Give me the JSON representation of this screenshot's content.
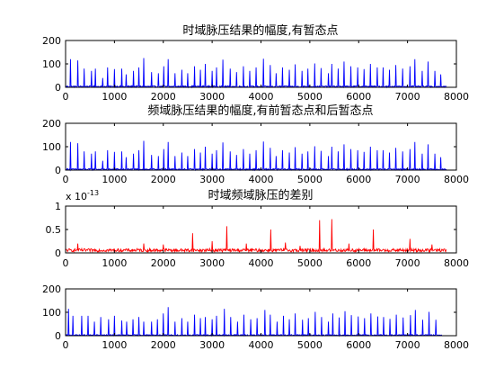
{
  "chart_data": [
    {
      "type": "line",
      "title": "时域脉压结果的幅度,有暂态点",
      "xlim": [
        0,
        8000
      ],
      "ylim": [
        0,
        200
      ],
      "xticks": [
        "0",
        "1000",
        "2000",
        "3000",
        "4000",
        "5000",
        "6000",
        "7000",
        "8000"
      ],
      "yticks": [
        "0",
        "100",
        "200"
      ],
      "grid": false,
      "series": [
        {
          "color": "#0000ff",
          "x_end": 7800,
          "baseline": 4,
          "peaks": [
            [
              95,
              120
            ],
            [
              245,
              115
            ],
            [
              380,
              80
            ],
            [
              525,
              70
            ],
            [
              605,
              80
            ],
            [
              760,
              40
            ],
            [
              860,
              85
            ],
            [
              1000,
              78
            ],
            [
              1145,
              80
            ],
            [
              1240,
              55
            ],
            [
              1385,
              70
            ],
            [
              1500,
              85
            ],
            [
              1600,
              125
            ],
            [
              1755,
              65
            ],
            [
              1900,
              60
            ],
            [
              2010,
              90
            ],
            [
              2100,
              120
            ],
            [
              2240,
              60
            ],
            [
              2380,
              75
            ],
            [
              2500,
              60
            ],
            [
              2640,
              90
            ],
            [
              2760,
              75
            ],
            [
              2860,
              100
            ],
            [
              3000,
              70
            ],
            [
              3090,
              85
            ],
            [
              3220,
              118
            ],
            [
              3370,
              80
            ],
            [
              3500,
              65
            ],
            [
              3640,
              90
            ],
            [
              3770,
              70
            ],
            [
              3900,
              85
            ],
            [
              4050,
              122
            ],
            [
              4190,
              95
            ],
            [
              4310,
              60
            ],
            [
              4440,
              85
            ],
            [
              4580,
              75
            ],
            [
              4700,
              98
            ],
            [
              4840,
              70
            ],
            [
              4960,
              80
            ],
            [
              5100,
              102
            ],
            [
              5230,
              82
            ],
            [
              5380,
              60
            ],
            [
              5450,
              100
            ],
            [
              5580,
              80
            ],
            [
              5700,
              110
            ],
            [
              5840,
              90
            ],
            [
              5980,
              85
            ],
            [
              6110,
              78
            ],
            [
              6240,
              100
            ],
            [
              6380,
              85
            ],
            [
              6500,
              85
            ],
            [
              6630,
              75
            ],
            [
              6760,
              95
            ],
            [
              6900,
              80
            ],
            [
              7050,
              90
            ],
            [
              7150,
              120
            ],
            [
              7300,
              70
            ],
            [
              7420,
              110
            ],
            [
              7560,
              70
            ],
            [
              7680,
              55
            ]
          ]
        }
      ]
    },
    {
      "type": "line",
      "title": "频域脉压结果的幅度,有前暂态点和后暂态点",
      "xlim": [
        0,
        8000
      ],
      "ylim": [
        0,
        200
      ],
      "xticks": [
        "0",
        "1000",
        "2000",
        "3000",
        "4000",
        "5000",
        "6000",
        "7000",
        "8000"
      ],
      "yticks": [
        "0",
        "100",
        "200"
      ],
      "grid": false,
      "series": [
        {
          "color": "#0000ff",
          "x_end": 7800,
          "baseline": 4,
          "peaks": [
            [
              95,
              120
            ],
            [
              245,
              115
            ],
            [
              380,
              80
            ],
            [
              525,
              70
            ],
            [
              605,
              80
            ],
            [
              760,
              40
            ],
            [
              860,
              85
            ],
            [
              1000,
              78
            ],
            [
              1145,
              80
            ],
            [
              1240,
              55
            ],
            [
              1385,
              70
            ],
            [
              1500,
              85
            ],
            [
              1600,
              125
            ],
            [
              1755,
              65
            ],
            [
              1900,
              60
            ],
            [
              2010,
              90
            ],
            [
              2100,
              120
            ],
            [
              2240,
              60
            ],
            [
              2380,
              75
            ],
            [
              2500,
              60
            ],
            [
              2640,
              90
            ],
            [
              2760,
              75
            ],
            [
              2860,
              100
            ],
            [
              3000,
              70
            ],
            [
              3090,
              85
            ],
            [
              3220,
              118
            ],
            [
              3370,
              80
            ],
            [
              3500,
              65
            ],
            [
              3640,
              90
            ],
            [
              3770,
              70
            ],
            [
              3900,
              85
            ],
            [
              4050,
              122
            ],
            [
              4190,
              95
            ],
            [
              4310,
              60
            ],
            [
              4440,
              85
            ],
            [
              4580,
              75
            ],
            [
              4700,
              98
            ],
            [
              4840,
              70
            ],
            [
              4960,
              80
            ],
            [
              5100,
              102
            ],
            [
              5230,
              82
            ],
            [
              5380,
              60
            ],
            [
              5450,
              100
            ],
            [
              5580,
              80
            ],
            [
              5700,
              110
            ],
            [
              5840,
              90
            ],
            [
              5980,
              85
            ],
            [
              6110,
              78
            ],
            [
              6240,
              100
            ],
            [
              6380,
              85
            ],
            [
              6500,
              85
            ],
            [
              6630,
              75
            ],
            [
              6760,
              95
            ],
            [
              6900,
              80
            ],
            [
              7050,
              90
            ],
            [
              7150,
              120
            ],
            [
              7300,
              70
            ],
            [
              7420,
              110
            ],
            [
              7560,
              70
            ],
            [
              7680,
              55
            ]
          ]
        }
      ]
    },
    {
      "type": "line",
      "title": "时域频域脉压的差别",
      "exponent_label": "x 10",
      "exponent_power": "-13",
      "xlim": [
        0,
        8000
      ],
      "ylim": [
        0,
        1
      ],
      "xticks": [
        "0",
        "1000",
        "2000",
        "3000",
        "4000",
        "5000",
        "6000",
        "7000",
        "8000"
      ],
      "yticks": [
        "0",
        "0.5",
        "1"
      ],
      "grid": false,
      "series": [
        {
          "color": "#ff0000",
          "x_end": 7800,
          "noise_level": 0.09,
          "peaks": [
            [
              250,
              0.2
            ],
            [
              1600,
              0.2
            ],
            [
              2000,
              0.18
            ],
            [
              2600,
              0.42
            ],
            [
              3000,
              0.25
            ],
            [
              3300,
              0.57
            ],
            [
              3700,
              0.2
            ],
            [
              4200,
              0.5
            ],
            [
              4500,
              0.22
            ],
            [
              4800,
              0.15
            ],
            [
              5200,
              0.7
            ],
            [
              5450,
              0.72
            ],
            [
              5800,
              0.2
            ],
            [
              6300,
              0.5
            ],
            [
              7050,
              0.3
            ],
            [
              7500,
              0.18
            ]
          ]
        }
      ]
    },
    {
      "type": "line",
      "title": "",
      "xlim": [
        0,
        8000
      ],
      "ylim": [
        0,
        200
      ],
      "xticks": [
        "0",
        "1000",
        "2000",
        "3000",
        "4000",
        "5000",
        "6000",
        "7000",
        "8000"
      ],
      "yticks": [
        "0",
        "100",
        "200"
      ],
      "grid": false,
      "series": [
        {
          "color": "#0000ff",
          "x_end": 7700,
          "baseline": 3,
          "peaks": [
            [
              60,
              115
            ],
            [
              145,
              85
            ],
            [
              330,
              85
            ],
            [
              460,
              85
            ],
            [
              590,
              60
            ],
            [
              720,
              80
            ],
            [
              880,
              70
            ],
            [
              1000,
              85
            ],
            [
              1150,
              65
            ],
            [
              1250,
              60
            ],
            [
              1380,
              70
            ],
            [
              1500,
              80
            ],
            [
              1600,
              60
            ],
            [
              1760,
              60
            ],
            [
              1880,
              70
            ],
            [
              2000,
              95
            ],
            [
              2100,
              122
            ],
            [
              2240,
              60
            ],
            [
              2380,
              75
            ],
            [
              2500,
              60
            ],
            [
              2640,
              90
            ],
            [
              2760,
              75
            ],
            [
              2860,
              80
            ],
            [
              3000,
              70
            ],
            [
              3090,
              85
            ],
            [
              3250,
              115
            ],
            [
              3380,
              80
            ],
            [
              3520,
              60
            ],
            [
              3650,
              90
            ],
            [
              3790,
              70
            ],
            [
              3920,
              75
            ],
            [
              4080,
              110
            ],
            [
              4190,
              90
            ],
            [
              4330,
              60
            ],
            [
              4460,
              85
            ],
            [
              4580,
              70
            ],
            [
              4700,
              95
            ],
            [
              4850,
              68
            ],
            [
              4970,
              75
            ],
            [
              5110,
              102
            ],
            [
              5240,
              80
            ],
            [
              5380,
              60
            ],
            [
              5470,
              95
            ],
            [
              5600,
              78
            ],
            [
              5720,
              105
            ],
            [
              5850,
              88
            ],
            [
              5990,
              82
            ],
            [
              6120,
              75
            ],
            [
              6250,
              95
            ],
            [
              6390,
              82
            ],
            [
              6510,
              80
            ],
            [
              6640,
              72
            ],
            [
              6770,
              90
            ],
            [
              6910,
              78
            ],
            [
              7060,
              88
            ],
            [
              7160,
              110
            ],
            [
              7310,
              68
            ],
            [
              7440,
              102
            ],
            [
              7580,
              68
            ]
          ]
        }
      ]
    }
  ]
}
